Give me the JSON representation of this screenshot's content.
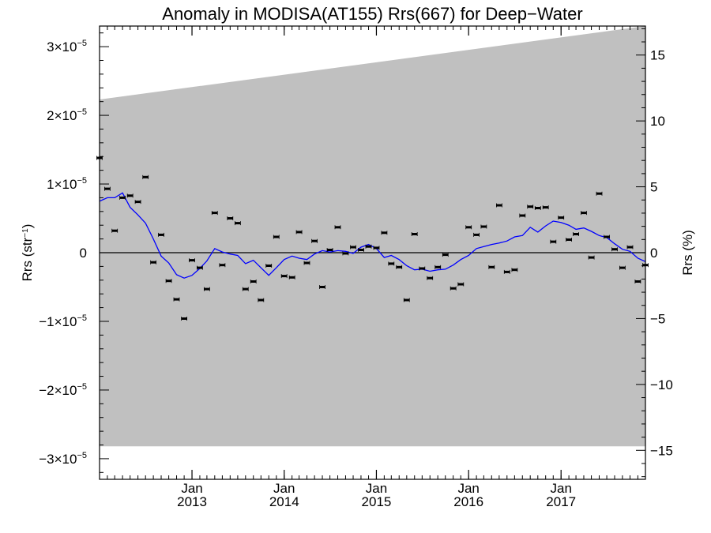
{
  "chart_data": {
    "type": "scatter",
    "title": "Anomaly in MODISA(AT155) Rrs(667) for Deep−Water",
    "ylabel_left": {
      "base": "Rrs (str",
      "sup": "−1",
      "close": ")"
    },
    "ylabel_right": "Rrs (%)",
    "xlim": [
      "2012-01-01",
      "2017-12-01"
    ],
    "ylim_left_e5": [
      -3.3,
      3.3
    ],
    "ylim_right": [
      -17.2,
      17.2
    ],
    "grid": false,
    "x_ticks": [
      {
        "date": "2013-01-01",
        "month": "Jan",
        "year": "2013"
      },
      {
        "date": "2014-01-01",
        "month": "Jan",
        "year": "2014"
      },
      {
        "date": "2015-01-01",
        "month": "Jan",
        "year": "2015"
      },
      {
        "date": "2016-01-01",
        "month": "Jan",
        "year": "2016"
      },
      {
        "date": "2017-01-01",
        "month": "Jan",
        "year": "2017"
      }
    ],
    "y_ticks_left": [
      {
        "value_e5": 3,
        "label": "3×10",
        "sup": "−5"
      },
      {
        "value_e5": 2,
        "label": "2×10",
        "sup": "−5"
      },
      {
        "value_e5": 1,
        "label": "1×10",
        "sup": "−5"
      },
      {
        "value_e5": 0,
        "label": "0",
        "sup": ""
      },
      {
        "value_e5": -1,
        "label": "−1×10",
        "sup": "−5"
      },
      {
        "value_e5": -2,
        "label": "−2×10",
        "sup": "−5"
      },
      {
        "value_e5": -3,
        "label": "−3×10",
        "sup": "−5"
      }
    ],
    "y_ticks_right": [
      {
        "value": 15,
        "label": "15"
      },
      {
        "value": 10,
        "label": "10"
      },
      {
        "value": 5,
        "label": "5"
      },
      {
        "value": 0,
        "label": "0"
      },
      {
        "value": -5,
        "label": "−5"
      },
      {
        "value": -10,
        "label": "−10"
      },
      {
        "value": -15,
        "label": "−15"
      }
    ],
    "band": {
      "upper_start_e5": 2.23,
      "upper_end_e5": 3.3,
      "lower_e5": -2.82
    },
    "zero_line": true,
    "series": [
      {
        "kind": "points",
        "x": [
          "2012-01",
          "2012-02",
          "2012-03",
          "2012-04",
          "2012-05",
          "2012-06",
          "2012-07",
          "2012-08",
          "2012-09",
          "2012-10",
          "2012-11",
          "2012-12",
          "2013-01",
          "2013-02",
          "2013-03",
          "2013-04",
          "2013-05",
          "2013-06",
          "2013-07",
          "2013-08",
          "2013-09",
          "2013-10",
          "2013-11",
          "2013-12",
          "2014-01",
          "2014-02",
          "2014-03",
          "2014-04",
          "2014-05",
          "2014-06",
          "2014-07",
          "2014-08",
          "2014-09",
          "2014-10",
          "2014-11",
          "2014-12",
          "2015-01",
          "2015-02",
          "2015-03",
          "2015-04",
          "2015-05",
          "2015-06",
          "2015-07",
          "2015-08",
          "2015-09",
          "2015-10",
          "2015-11",
          "2015-12",
          "2016-01",
          "2016-02",
          "2016-03",
          "2016-04",
          "2016-05",
          "2016-06",
          "2016-07",
          "2016-08",
          "2016-09",
          "2016-10",
          "2016-11",
          "2016-12",
          "2017-01",
          "2017-02",
          "2017-03",
          "2017-04",
          "2017-05",
          "2017-06",
          "2017-07",
          "2017-08",
          "2017-09",
          "2017-10",
          "2017-11",
          "2017-12"
        ],
        "y_e5": [
          1.38,
          0.93,
          0.32,
          0.8,
          0.83,
          0.74,
          1.1,
          -0.14,
          0.26,
          -0.41,
          -0.68,
          -0.96,
          -0.11,
          -0.22,
          -0.53,
          0.58,
          -0.18,
          0.5,
          0.43,
          -0.53,
          -0.42,
          -0.69,
          -0.19,
          0.23,
          -0.34,
          -0.36,
          0.3,
          -0.15,
          0.17,
          -0.5,
          0.04,
          0.37,
          -0.01,
          0.08,
          0.04,
          0.09,
          0.07,
          0.29,
          -0.16,
          -0.21,
          -0.69,
          0.27,
          -0.23,
          -0.37,
          -0.21,
          -0.03,
          -0.52,
          -0.46,
          0.37,
          0.26,
          0.38,
          -0.21,
          0.69,
          -0.28,
          -0.25,
          0.54,
          0.67,
          0.65,
          0.66,
          0.16,
          0.51,
          0.19,
          0.27,
          0.58,
          -0.07,
          0.86,
          0.23,
          0.05,
          -0.22,
          0.08,
          -0.42,
          -0.18
        ]
      },
      {
        "kind": "line",
        "color": "#0000ff",
        "x": [
          "2012-01",
          "2012-02",
          "2012-03",
          "2012-04",
          "2012-05",
          "2012-06",
          "2012-07",
          "2012-08",
          "2012-09",
          "2012-10",
          "2012-11",
          "2012-12",
          "2013-01",
          "2013-02",
          "2013-03",
          "2013-04",
          "2013-05",
          "2013-06",
          "2013-07",
          "2013-08",
          "2013-09",
          "2013-10",
          "2013-11",
          "2013-12",
          "2014-01",
          "2014-02",
          "2014-03",
          "2014-04",
          "2014-05",
          "2014-06",
          "2014-07",
          "2014-08",
          "2014-09",
          "2014-10",
          "2014-11",
          "2014-12",
          "2015-01",
          "2015-02",
          "2015-03",
          "2015-04",
          "2015-05",
          "2015-06",
          "2015-07",
          "2015-08",
          "2015-09",
          "2015-10",
          "2015-11",
          "2015-12",
          "2016-01",
          "2016-02",
          "2016-03",
          "2016-04",
          "2016-05",
          "2016-06",
          "2016-07",
          "2016-08",
          "2016-09",
          "2016-10",
          "2016-11",
          "2016-12",
          "2017-01",
          "2017-02",
          "2017-03",
          "2017-04",
          "2017-05",
          "2017-06",
          "2017-07",
          "2017-08",
          "2017-09",
          "2017-10",
          "2017-11",
          "2017-12"
        ],
        "y_e5": [
          0.75,
          0.8,
          0.8,
          0.87,
          0.66,
          0.55,
          0.43,
          0.2,
          -0.05,
          -0.15,
          -0.32,
          -0.37,
          -0.33,
          -0.23,
          -0.12,
          0.06,
          0.01,
          -0.02,
          -0.04,
          -0.16,
          -0.11,
          -0.22,
          -0.33,
          -0.22,
          -0.1,
          -0.05,
          -0.08,
          -0.1,
          -0.02,
          0.03,
          0.01,
          0.03,
          0.02,
          -0.01,
          0.08,
          0.12,
          0.06,
          -0.07,
          -0.04,
          -0.1,
          -0.19,
          -0.25,
          -0.24,
          -0.27,
          -0.25,
          -0.24,
          -0.18,
          -0.1,
          -0.04,
          0.06,
          0.09,
          0.12,
          0.14,
          0.17,
          0.23,
          0.25,
          0.37,
          0.3,
          0.39,
          0.46,
          0.44,
          0.4,
          0.34,
          0.36,
          0.31,
          0.25,
          0.22,
          0.13,
          0.05,
          0.02,
          -0.08,
          -0.13
        ]
      }
    ]
  }
}
